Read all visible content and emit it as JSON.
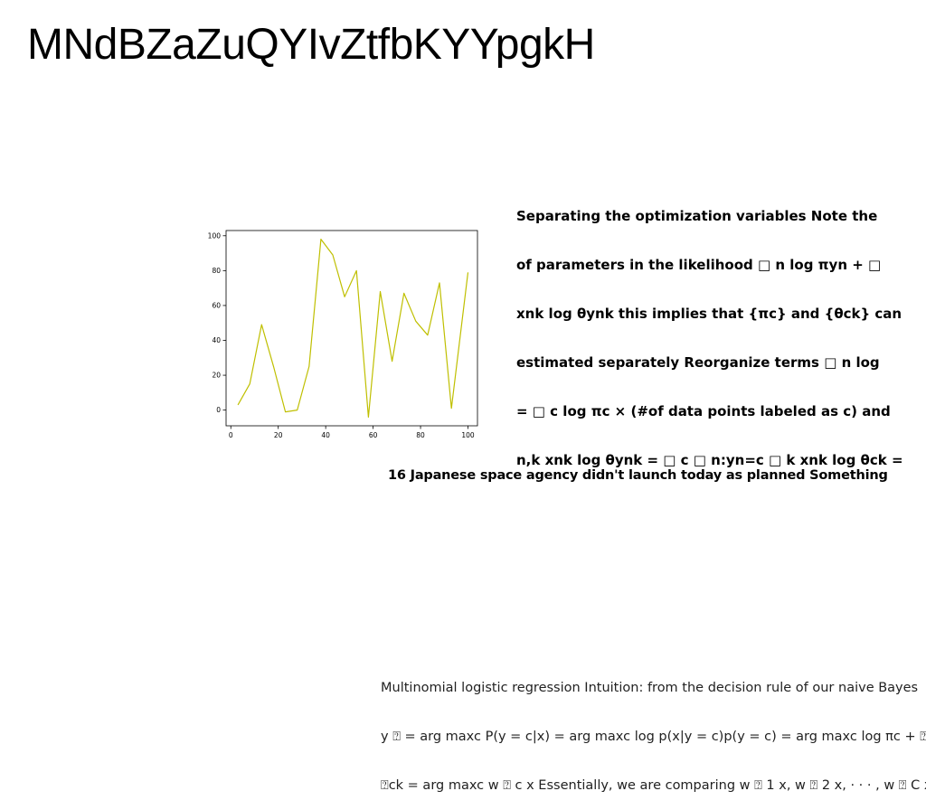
{
  "title": "MNdBZaZuQYIvZtfbKYYpgkH",
  "paragraph1": {
    "lines": [
      "Separating the optimization variables Note the",
      "of parameters in the likelihood □ n log πyn + □",
      "xnk log θynk this implies that {πc} and {θck} can",
      "estimated separately Reorganize terms □ n log",
      "= □ c log πc × (#of data points labeled as c) and",
      "n,k xnk log θynk = □ c □ n:yn=c □ k xnk log θck ="
    ]
  },
  "headline": "16 Japanese space agency didn't launch today as planned Something",
  "paragraph2": {
    "lines": [
      "Multinomial logistic regression Intuition: from the decision rule of our naive Bayes",
      "y ⍰ = arg maxc P(y = c|x) = arg maxc log p(x|y = c)p(y = c) = arg maxc log πc + ⍰ k xk",
      "⍰ck = arg maxc w ⍰ c x Essentially, we are comparing w ⍰ 1 x, w ⍰ 2 x, · · · , w ⍰ C x"
    ]
  },
  "chart_data": {
    "type": "line",
    "color": "#bfbf00",
    "x": [
      3,
      8,
      13,
      18,
      23,
      28,
      33,
      38,
      43,
      48,
      53,
      58,
      63,
      68,
      73,
      78,
      83,
      88,
      93,
      100
    ],
    "y": [
      3,
      15,
      49,
      25,
      -1,
      0,
      25,
      98,
      89,
      65,
      80,
      -4,
      68,
      28,
      67,
      51,
      43,
      73,
      1,
      79
    ],
    "xticks": [
      0,
      20,
      40,
      60,
      80,
      100
    ],
    "yticks": [
      0,
      20,
      40,
      60,
      80,
      100
    ],
    "xlim": [
      -2,
      104
    ],
    "ylim": [
      -9,
      103
    ]
  }
}
